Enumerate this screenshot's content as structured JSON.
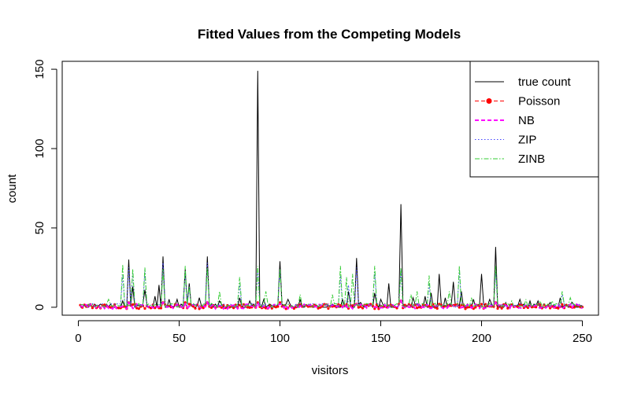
{
  "chart_data": {
    "type": "line",
    "title": "Fitted Values from the Competing Models",
    "xlabel": "visitors",
    "ylabel": "count",
    "xlim": [
      -8,
      258
    ],
    "ylim": [
      -5,
      155
    ],
    "xticks": [
      0,
      50,
      100,
      150,
      200,
      250
    ],
    "yticks": [
      0,
      50,
      100,
      150
    ],
    "legend_position": "top-right",
    "series": [
      {
        "name": "true count",
        "color": "#000000",
        "style": "solid",
        "peaks": [
          [
            22,
            4
          ],
          [
            25,
            30
          ],
          [
            27,
            13
          ],
          [
            33,
            11
          ],
          [
            38,
            7
          ],
          [
            40,
            14
          ],
          [
            42,
            32
          ],
          [
            45,
            5
          ],
          [
            49,
            5
          ],
          [
            53,
            24
          ],
          [
            55,
            15
          ],
          [
            60,
            6
          ],
          [
            64,
            32
          ],
          [
            70,
            4
          ],
          [
            80,
            6
          ],
          [
            85,
            4
          ],
          [
            89,
            149
          ],
          [
            92,
            5
          ],
          [
            100,
            29
          ],
          [
            104,
            5
          ],
          [
            110,
            5
          ],
          [
            131,
            5
          ],
          [
            134,
            10
          ],
          [
            138,
            31
          ],
          [
            140,
            3
          ],
          [
            147,
            9
          ],
          [
            150,
            5
          ],
          [
            154,
            15
          ],
          [
            160,
            65
          ],
          [
            166,
            6
          ],
          [
            172,
            7
          ],
          [
            175,
            9
          ],
          [
            179,
            21
          ],
          [
            182,
            6
          ],
          [
            186,
            16
          ],
          [
            190,
            10
          ],
          [
            196,
            5
          ],
          [
            200,
            21
          ],
          [
            204,
            5
          ],
          [
            207,
            38
          ],
          [
            212,
            3
          ],
          [
            219,
            5
          ],
          [
            224,
            4
          ],
          [
            228,
            4
          ],
          [
            234,
            3
          ],
          [
            239,
            6
          ],
          [
            245,
            3
          ]
        ]
      },
      {
        "name": "Poisson",
        "color": "#ff0000",
        "style": "dashed",
        "marker": "circle",
        "peaks": [
          [
            25,
            3
          ],
          [
            42,
            3
          ],
          [
            53,
            3
          ],
          [
            64,
            3
          ],
          [
            89,
            3
          ],
          [
            100,
            3
          ],
          [
            138,
            2
          ],
          [
            160,
            4
          ],
          [
            179,
            2
          ],
          [
            207,
            3
          ]
        ]
      },
      {
        "name": "NB",
        "color": "#ff00ff",
        "style": "dashed",
        "peaks": [
          [
            25,
            3
          ],
          [
            42,
            3
          ],
          [
            53,
            2
          ],
          [
            64,
            3
          ],
          [
            89,
            3
          ],
          [
            100,
            2
          ],
          [
            138,
            2
          ],
          [
            160,
            4
          ],
          [
            207,
            3
          ]
        ]
      },
      {
        "name": "ZIP",
        "color": "#4040ff",
        "style": "dotted",
        "peaks": [
          [
            22,
            20
          ],
          [
            25,
            25
          ],
          [
            27,
            22
          ],
          [
            33,
            23
          ],
          [
            42,
            28
          ],
          [
            53,
            22
          ],
          [
            55,
            13
          ],
          [
            64,
            28
          ],
          [
            80,
            15
          ],
          [
            89,
            24
          ],
          [
            100,
            24
          ],
          [
            130,
            20
          ],
          [
            134,
            14
          ],
          [
            138,
            25
          ],
          [
            147,
            22
          ],
          [
            160,
            24
          ],
          [
            174,
            15
          ],
          [
            189,
            24
          ],
          [
            207,
            22
          ],
          [
            240,
            8
          ]
        ]
      },
      {
        "name": "ZINB",
        "color": "#33cc33",
        "style": "dashdot",
        "peaks": [
          [
            15,
            5
          ],
          [
            22,
            27
          ],
          [
            27,
            24
          ],
          [
            33,
            25
          ],
          [
            42,
            24
          ],
          [
            53,
            26
          ],
          [
            55,
            13
          ],
          [
            64,
            25
          ],
          [
            70,
            10
          ],
          [
            80,
            19
          ],
          [
            89,
            26
          ],
          [
            93,
            10
          ],
          [
            100,
            24
          ],
          [
            110,
            8
          ],
          [
            126,
            8
          ],
          [
            130,
            26
          ],
          [
            133,
            19
          ],
          [
            136,
            21
          ],
          [
            147,
            26
          ],
          [
            160,
            25
          ],
          [
            165,
            8
          ],
          [
            168,
            10
          ],
          [
            174,
            20
          ],
          [
            184,
            10
          ],
          [
            189,
            26
          ],
          [
            195,
            6
          ],
          [
            207,
            26
          ],
          [
            215,
            4
          ],
          [
            222,
            5
          ],
          [
            229,
            4
          ],
          [
            235,
            4
          ],
          [
            240,
            10
          ],
          [
            244,
            6
          ]
        ]
      }
    ]
  }
}
